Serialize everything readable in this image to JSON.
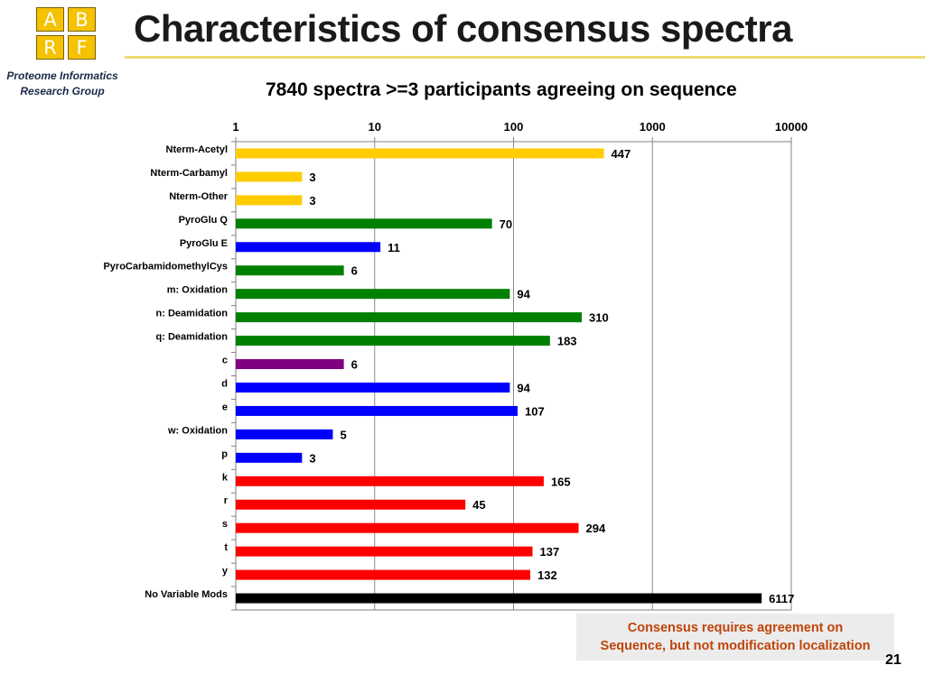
{
  "header": {
    "title": "Characteristics of consensus spectra",
    "subtitle": "7840 spectra >=3 participants agreeing on sequence"
  },
  "logo": {
    "letters": [
      "A",
      "B",
      "R",
      "F"
    ],
    "color": "#f5c200"
  },
  "org": {
    "line1": "Proteome Informatics",
    "line2": "Research Group"
  },
  "chart_data": {
    "type": "bar",
    "orientation": "horizontal",
    "x_scale": "log",
    "xlim": [
      1,
      10000
    ],
    "x_ticks": [
      "1",
      "10",
      "100",
      "1000",
      "10000"
    ],
    "grid": "vertical",
    "categories": [
      "Nterm-Acetyl",
      "Nterm-Carbamyl",
      "Nterm-Other",
      "PyroGlu Q",
      "PyroGlu E",
      "PyroCarbamidomethylCys",
      "m: Oxidation",
      "n: Deamidation",
      "q: Deamidation",
      "c",
      "d",
      "e",
      "w: Oxidation",
      "p",
      "k",
      "r",
      "s",
      "t",
      "y",
      "No Variable Mods"
    ],
    "values": [
      447,
      3,
      3,
      70,
      11,
      6,
      94,
      310,
      183,
      6,
      94,
      107,
      5,
      3,
      165,
      45,
      294,
      137,
      132,
      6117
    ],
    "colors": [
      "#ffcc00",
      "#ffcc00",
      "#ffcc00",
      "#008000",
      "#0000ff",
      "#008000",
      "#008000",
      "#008000",
      "#008000",
      "#800080",
      "#0000ff",
      "#0000ff",
      "#0000ff",
      "#0000ff",
      "#ff0000",
      "#ff0000",
      "#ff0000",
      "#ff0000",
      "#ff0000",
      "#000000"
    ]
  },
  "note": {
    "line1": "Consensus requires agreement on",
    "line2": "Sequence, but not modification localization"
  },
  "page_number": "21"
}
